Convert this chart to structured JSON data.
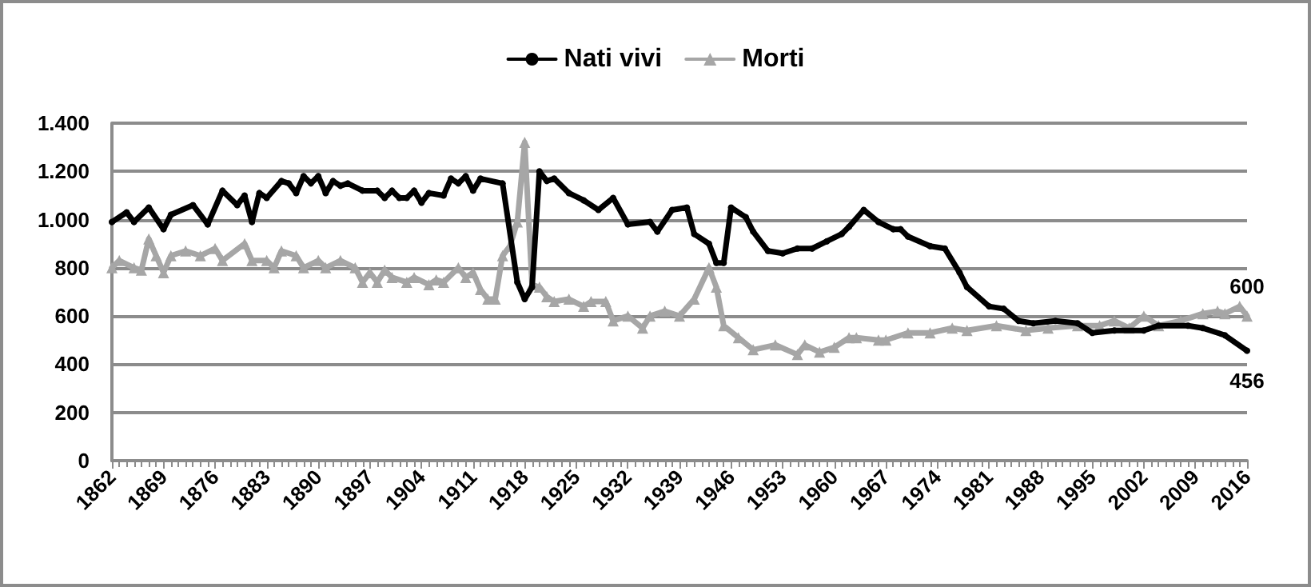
{
  "chart_data": {
    "type": "line",
    "xlim": [
      1862,
      2016
    ],
    "xticks": [
      1862,
      1869,
      1876,
      1883,
      1890,
      1897,
      1904,
      1911,
      1918,
      1925,
      1932,
      1939,
      1946,
      1953,
      1960,
      1967,
      1974,
      1981,
      1988,
      1995,
      2002,
      2009,
      2016
    ],
    "ylim": [
      0,
      1400
    ],
    "yticks": [
      {
        "value": 0,
        "label": "0"
      },
      {
        "value": 200,
        "label": "200"
      },
      {
        "value": 400,
        "label": "400"
      },
      {
        "value": 600,
        "label": "600"
      },
      {
        "value": 800,
        "label": "800"
      },
      {
        "value": 1000,
        "label": "1.000"
      },
      {
        "value": 1200,
        "label": "1.200"
      },
      {
        "value": 1400,
        "label": "1.400"
      }
    ],
    "grid": "y",
    "legend": "top",
    "series": [
      {
        "name": "Nati vivi",
        "color": "#000000",
        "marker": "circle",
        "x": [
          1862,
          1864,
          1865,
          1867,
          1869,
          1870,
          1873,
          1875,
          1877,
          1879,
          1880,
          1881,
          1882,
          1883,
          1885,
          1886,
          1887,
          1888,
          1889,
          1890,
          1891,
          1892,
          1893,
          1894,
          1896,
          1898,
          1899,
          1900,
          1901,
          1902,
          1903,
          1904,
          1905,
          1907,
          1908,
          1909,
          1910,
          1911,
          1912,
          1915,
          1917,
          1918,
          1919,
          1920,
          1921,
          1922,
          1924,
          1926,
          1928,
          1930,
          1932,
          1935,
          1936,
          1938,
          1940,
          1941,
          1943,
          1944,
          1945,
          1946,
          1948,
          1949,
          1951,
          1953,
          1955,
          1957,
          1959,
          1961,
          1962,
          1964,
          1966,
          1968,
          1969,
          1970,
          1973,
          1975,
          1977,
          1978,
          1981,
          1983,
          1985,
          1987,
          1990,
          1993,
          1995,
          1998,
          2002,
          2004,
          2008,
          2010,
          2013,
          2016
        ],
        "values": [
          990,
          1030,
          990,
          1050,
          960,
          1020,
          1060,
          980,
          1120,
          1060,
          1100,
          990,
          1110,
          1090,
          1160,
          1150,
          1110,
          1180,
          1150,
          1180,
          1110,
          1160,
          1140,
          1150,
          1120,
          1120,
          1090,
          1120,
          1090,
          1090,
          1120,
          1070,
          1110,
          1100,
          1170,
          1150,
          1180,
          1120,
          1170,
          1150,
          740,
          670,
          720,
          1200,
          1160,
          1170,
          1110,
          1080,
          1040,
          1090,
          980,
          990,
          950,
          1040,
          1050,
          940,
          900,
          820,
          820,
          1050,
          1010,
          950,
          870,
          860,
          880,
          880,
          910,
          940,
          970,
          1040,
          990,
          960,
          960,
          930,
          890,
          880,
          780,
          720,
          640,
          630,
          580,
          570,
          580,
          570,
          530,
          540,
          540,
          560,
          560,
          550,
          520,
          456
        ]
      },
      {
        "name": "Morti",
        "color": "#a6a6a6",
        "marker": "triangle",
        "x": [
          1862,
          1863,
          1865,
          1866,
          1867,
          1868,
          1869,
          1870,
          1872,
          1874,
          1876,
          1877,
          1880,
          1881,
          1883,
          1884,
          1885,
          1887,
          1888,
          1890,
          1891,
          1893,
          1895,
          1896,
          1897,
          1898,
          1899,
          1900,
          1902,
          1903,
          1905,
          1906,
          1907,
          1909,
          1910,
          1911,
          1912,
          1913,
          1914,
          1915,
          1916,
          1917,
          1918,
          1919,
          1920,
          1921,
          1922,
          1924,
          1926,
          1927,
          1929,
          1930,
          1932,
          1934,
          1935,
          1937,
          1939,
          1941,
          1943,
          1944,
          1945,
          1947,
          1949,
          1952,
          1955,
          1956,
          1958,
          1960,
          1962,
          1963,
          1966,
          1967,
          1970,
          1973,
          1976,
          1978,
          1982,
          1986,
          1989,
          1993,
          1996,
          1998,
          2000,
          2002,
          2004,
          2007,
          2010,
          2012,
          2013,
          2015,
          2016
        ],
        "values": [
          800,
          830,
          800,
          790,
          920,
          850,
          780,
          850,
          870,
          850,
          880,
          830,
          900,
          830,
          830,
          800,
          870,
          850,
          800,
          830,
          800,
          830,
          800,
          740,
          780,
          740,
          790,
          760,
          740,
          760,
          730,
          750,
          740,
          800,
          760,
          780,
          710,
          670,
          670,
          850,
          890,
          990,
          1320,
          730,
          720,
          680,
          660,
          670,
          640,
          660,
          660,
          580,
          600,
          550,
          600,
          620,
          600,
          670,
          800,
          720,
          560,
          510,
          460,
          480,
          440,
          480,
          450,
          470,
          510,
          510,
          500,
          500,
          530,
          530,
          550,
          540,
          560,
          540,
          550,
          560,
          560,
          580,
          550,
          600,
          560,
          580,
          610,
          620,
          610,
          640,
          600
        ]
      }
    ],
    "annotations": [
      {
        "text": "600",
        "x": 2016,
        "y": 600
      },
      {
        "text": "456",
        "x": 2016,
        "y": 456
      }
    ]
  }
}
